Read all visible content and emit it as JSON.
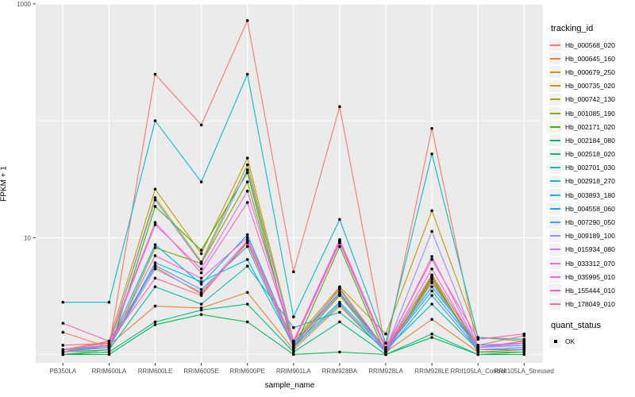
{
  "figure": {
    "background": "#FFFFFF",
    "panel_background": "#EBEBEB",
    "gridline_color": "#FFFFFF",
    "tick_label_color": "#4D4D4D",
    "legend": {
      "tracking_title": "tracking_id",
      "quant_title": "quant_status",
      "quant_items": [
        {
          "label": "OK",
          "shape": "black-square"
        }
      ]
    }
  },
  "chart_data": {
    "type": "line",
    "title": "",
    "xlabel": "sample_name",
    "ylabel": "FPKM + 1",
    "y_scale": "log10",
    "ylim": [
      0.8,
      1100
    ],
    "y_ticks": [
      {
        "value": 1000,
        "label": "1000"
      },
      {
        "value": 10,
        "label": "10"
      }
    ],
    "y_gridlines_major": [
      1000,
      10
    ],
    "y_gridlines_minor": [
      100,
      1
    ],
    "grid": true,
    "legend_position": "right",
    "point_color": "#000000",
    "categories": [
      "PB350LA",
      "RRIM600LA",
      "RRIM600LE",
      "RRIM600SE",
      "RRIM600PE",
      "RRIM901LA",
      "RRIM928BA",
      "RRIM928LA",
      "RRIM928LE",
      "RRII105LA_Control",
      "RRII105LA_Stressed"
    ],
    "series": [
      {
        "name": "Hb_000568_020",
        "color": "#F8766D",
        "values": [
          1.55,
          1.15,
          250,
          92,
          720,
          5.1,
          132,
          1.1,
          86,
          1.1,
          1.1
        ]
      },
      {
        "name": "Hb_000645_160",
        "color": "#EA8331",
        "values": [
          1.05,
          1.2,
          2.6,
          2.5,
          3.4,
          1.1,
          2.6,
          1.05,
          2.0,
          1.05,
          1.1
        ]
      },
      {
        "name": "Hb_000679_250",
        "color": "#D89000",
        "values": [
          1.05,
          1.3,
          5.6,
          3.3,
          9.0,
          1.2,
          3.3,
          1.1,
          4.2,
          1.15,
          1.3
        ]
      },
      {
        "name": "Hb_000735_020",
        "color": "#C09B00",
        "values": [
          1.1,
          1.3,
          26,
          7.3,
          48,
          1.3,
          3.8,
          1.5,
          17,
          1.4,
          1.3
        ]
      },
      {
        "name": "Hb_000742_130",
        "color": "#A3A500",
        "values": [
          1.05,
          1.2,
          22,
          6.2,
          42,
          1.25,
          3.6,
          1.1,
          4.8,
          1.15,
          1.2
        ]
      },
      {
        "name": "Hb_001085_190",
        "color": "#7CAE00",
        "values": [
          1.0,
          1.1,
          8.2,
          6.0,
          30,
          1.15,
          3.2,
          1.05,
          4.4,
          1.1,
          1.1
        ]
      },
      {
        "name": "Hb_002171_020",
        "color": "#39B600",
        "values": [
          1.0,
          1.05,
          18.5,
          7.8,
          36,
          1.1,
          8.4,
          1.0,
          4.6,
          1.05,
          1.05
        ]
      },
      {
        "name": "Hb_002184_080",
        "color": "#00BB4E",
        "values": [
          1.0,
          1.0,
          1.8,
          2.2,
          1.9,
          1.0,
          1.05,
          1.0,
          1.4,
          1.0,
          1.0
        ]
      },
      {
        "name": "Hb_002518_020",
        "color": "#00BF7D",
        "values": [
          1.0,
          1.05,
          1.9,
          2.4,
          2.7,
          1.05,
          1.9,
          1.0,
          1.5,
          1.0,
          1.05
        ]
      },
      {
        "name": "Hb_002701_030",
        "color": "#00C1A3",
        "values": [
          1.05,
          1.1,
          3.8,
          2.7,
          5.7,
          1.7,
          2.3,
          1.1,
          2.7,
          1.1,
          1.1
        ]
      },
      {
        "name": "Hb_002918_270",
        "color": "#00BFC4",
        "values": [
          2.8,
          2.8,
          100,
          30,
          250,
          2.1,
          14.3,
          1.25,
          52,
          1.4,
          1.35
        ]
      },
      {
        "name": "Hb_003893_180",
        "color": "#00BAE0",
        "values": [
          1.1,
          1.15,
          6.1,
          4.2,
          6.5,
          1.2,
          2.8,
          1.1,
          3.5,
          1.15,
          1.2
        ]
      },
      {
        "name": "Hb_004558_060",
        "color": "#00B0F6",
        "values": [
          1.1,
          1.2,
          8.7,
          4.0,
          10.6,
          1.25,
          3.4,
          1.1,
          3.8,
          1.2,
          1.25
        ]
      },
      {
        "name": "Hb_007290_050",
        "color": "#35A2FF",
        "values": [
          1.05,
          1.15,
          5.8,
          3.6,
          8.4,
          1.15,
          2.7,
          1.05,
          3.2,
          1.1,
          1.15
        ]
      },
      {
        "name": "Hb_009189_100",
        "color": "#9590FF",
        "values": [
          1.1,
          1.2,
          21,
          6.0,
          38,
          1.3,
          9.2,
          1.1,
          11.3,
          1.15,
          1.2
        ]
      },
      {
        "name": "Hb_015934_080",
        "color": "#C77CFF",
        "values": [
          1.05,
          1.15,
          5.4,
          3.4,
          9.5,
          1.2,
          3.3,
          1.05,
          4.1,
          1.1,
          1.15
        ]
      },
      {
        "name": "Hb_033312_070",
        "color": "#E76BF3",
        "values": [
          1.1,
          1.25,
          12.9,
          5.4,
          25,
          1.3,
          9.4,
          1.1,
          6.9,
          1.15,
          1.25
        ]
      },
      {
        "name": "Hb_035995_010",
        "color": "#FA62DB",
        "values": [
          1.1,
          1.2,
          7.0,
          4.5,
          10.0,
          1.25,
          9.0,
          1.1,
          5.4,
          1.15,
          1.3
        ]
      },
      {
        "name": "Hb_155444_010",
        "color": "#FF62BC",
        "values": [
          1.85,
          1.3,
          13.5,
          5.0,
          20,
          1.3,
          9.6,
          1.15,
          6.5,
          1.35,
          1.5
        ]
      },
      {
        "name": "Hb_178049_010",
        "color": "#FF6A98",
        "values": [
          1.2,
          1.25,
          4.5,
          3.2,
          9.3,
          1.2,
          3.7,
          1.1,
          4.7,
          1.2,
          1.45
        ]
      }
    ]
  }
}
